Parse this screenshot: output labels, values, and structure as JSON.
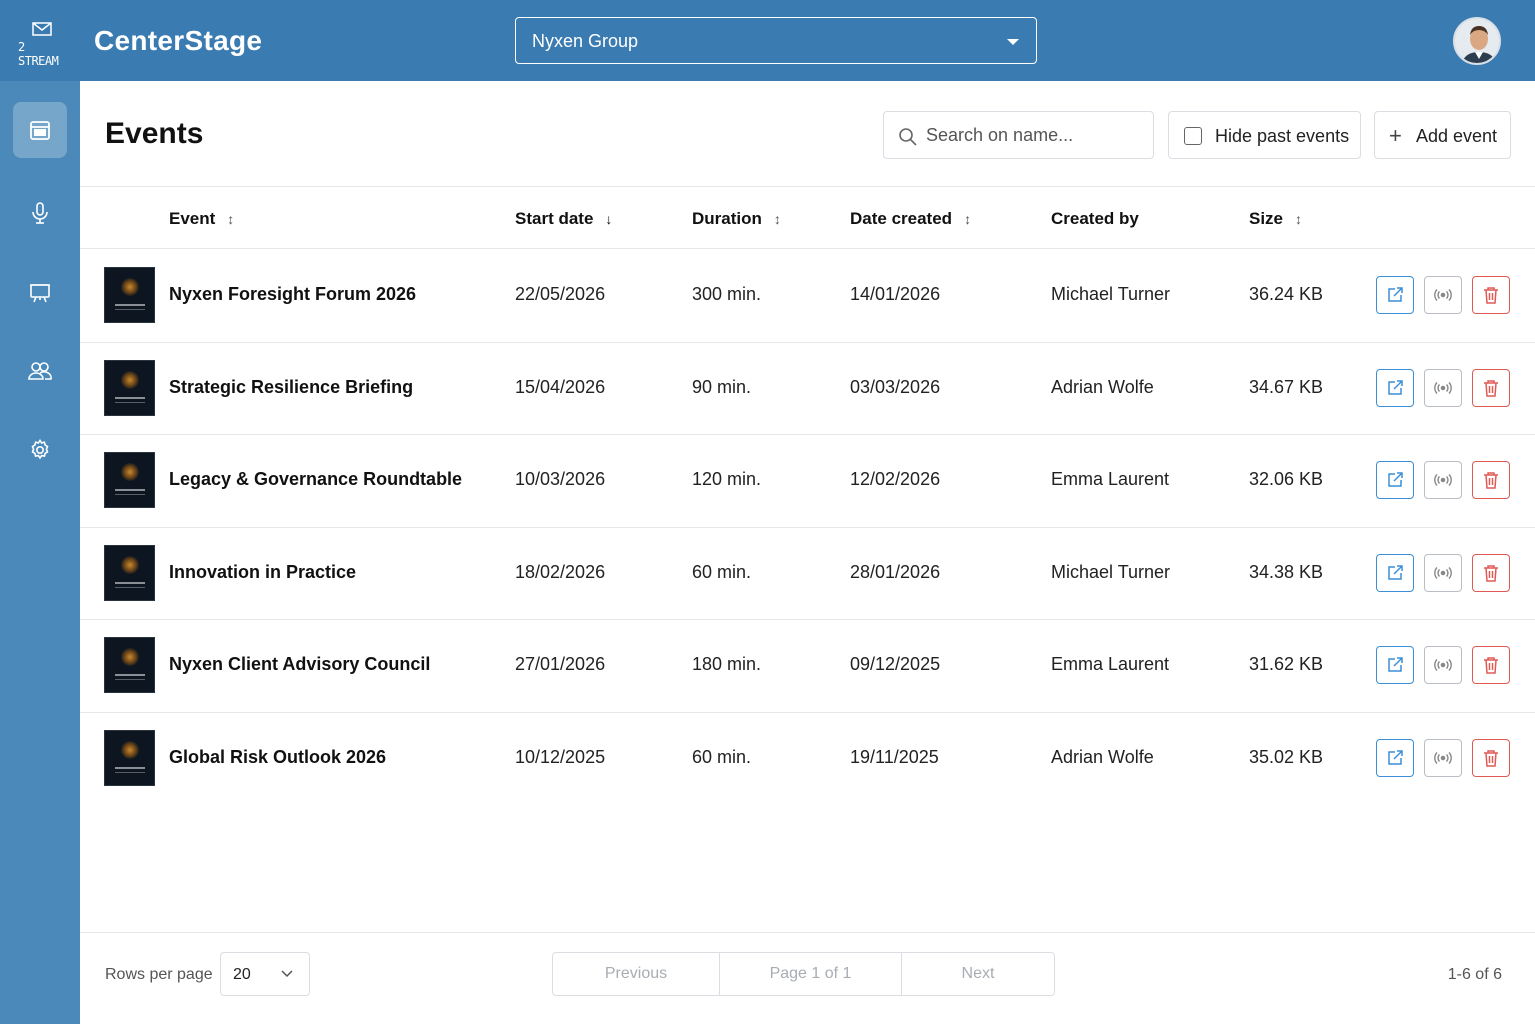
{
  "app": {
    "logo_text": "2 STREAM",
    "title": "CenterStage",
    "org_select": "Nyxen Group"
  },
  "sidebar": {
    "items": [
      {
        "icon": "calendar-icon",
        "active": true
      },
      {
        "icon": "microphone-icon",
        "active": false
      },
      {
        "icon": "presentation-icon",
        "active": false
      },
      {
        "icon": "users-icon",
        "active": false
      },
      {
        "icon": "gear-icon",
        "active": false
      }
    ]
  },
  "page": {
    "title": "Events",
    "search_placeholder": "Search on name...",
    "hide_past_label": "Hide past events",
    "hide_past_checked": false,
    "add_event_label": "Add event"
  },
  "table": {
    "columns": {
      "event": "Event",
      "start_date": "Start date",
      "duration": "Duration",
      "date_created": "Date created",
      "created_by": "Created by",
      "size": "Size"
    },
    "rows": [
      {
        "name": "Nyxen Foresight Forum 2026",
        "start": "22/05/2026",
        "duration": "300 min.",
        "created": "14/01/2026",
        "by": "Michael Turner",
        "size": "36.24 KB"
      },
      {
        "name": "Strategic Resilience Briefing",
        "start": "15/04/2026",
        "duration": "90 min.",
        "created": "03/03/2026",
        "by": "Adrian Wolfe",
        "size": "34.67 KB"
      },
      {
        "name": "Legacy & Governance Roundtable",
        "start": "10/03/2026",
        "duration": "120 min.",
        "created": "12/02/2026",
        "by": "Emma Laurent",
        "size": "32.06 KB"
      },
      {
        "name": "Innovation in Practice",
        "start": "18/02/2026",
        "duration": "60 min.",
        "created": "28/01/2026",
        "by": "Michael Turner",
        "size": "34.38 KB"
      },
      {
        "name": "Nyxen Client Advisory Council",
        "start": "27/01/2026",
        "duration": "180 min.",
        "created": "09/12/2025",
        "by": "Emma Laurent",
        "size": "31.62 KB"
      },
      {
        "name": "Global Risk Outlook 2026",
        "start": "10/12/2025",
        "duration": "60 min.",
        "created": "19/11/2025",
        "by": "Adrian Wolfe",
        "size": "35.02 KB"
      }
    ]
  },
  "footer": {
    "rows_per_page_label": "Rows per page",
    "rows_per_page_value": "20",
    "previous": "Previous",
    "page_info": "Page 1 of 1",
    "next": "Next",
    "range": "1-6 of 6"
  },
  "colors": {
    "topbar": "#3a7bb1",
    "sidebar": "#4a89ba",
    "open_button": "#3a8fd8",
    "delete_button": "#e05a55"
  }
}
